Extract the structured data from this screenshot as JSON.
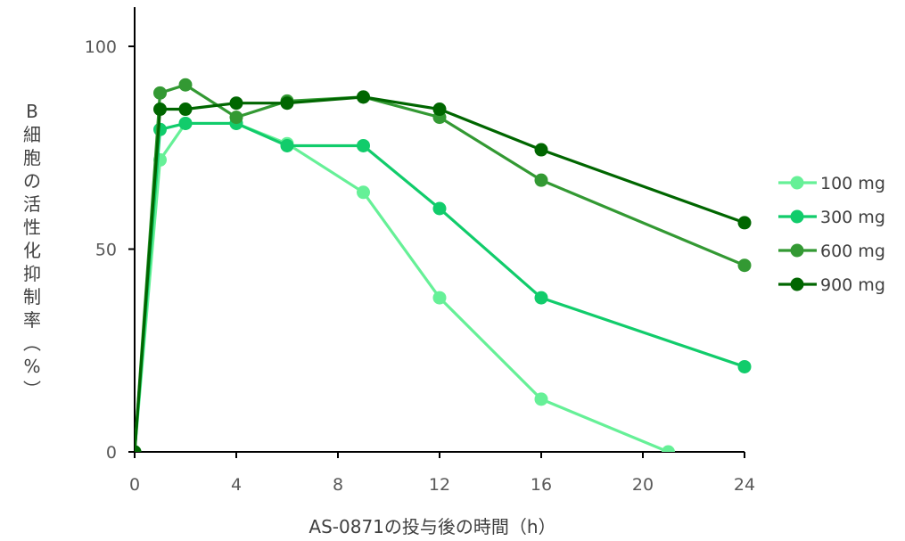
{
  "chart_data": {
    "type": "line",
    "xlabel": "AS-0871の投与後の時間（h）",
    "ylabel": "B細胞の活性化抑制率（%）",
    "x_ticks": [
      "0",
      "4",
      "8",
      "12",
      "16",
      "20",
      "24"
    ],
    "y_ticks": [
      "0",
      "50",
      "100"
    ],
    "xlim": [
      0,
      24
    ],
    "ylim": [
      0,
      110
    ],
    "grid": false,
    "legend_position": "right",
    "series": [
      {
        "name": "100 mg",
        "color": "#66f097",
        "x": [
          0,
          1,
          2,
          4,
          6,
          9,
          12,
          16,
          21
        ],
        "y": [
          0,
          72,
          81,
          81,
          76,
          64,
          38,
          13,
          0
        ]
      },
      {
        "name": "300 mg",
        "color": "#11cc6b",
        "x": [
          0,
          1,
          2,
          4,
          6,
          9,
          12,
          16,
          24
        ],
        "y": [
          0,
          79.5,
          81,
          81,
          75.5,
          75.5,
          60,
          38,
          21
        ]
      },
      {
        "name": "600 mg",
        "color": "#339933",
        "x": [
          0,
          1,
          2,
          4,
          6,
          9,
          12,
          16,
          24
        ],
        "y": [
          0,
          88.5,
          90.5,
          82.5,
          86.5,
          87.5,
          82.5,
          67,
          46
        ]
      },
      {
        "name": "900 mg",
        "color": "#006600",
        "x": [
          0,
          1,
          2,
          4,
          6,
          9,
          12,
          16,
          24
        ],
        "y": [
          0,
          84.5,
          84.5,
          86,
          86,
          87.5,
          84.5,
          74.5,
          56.5
        ]
      }
    ]
  }
}
